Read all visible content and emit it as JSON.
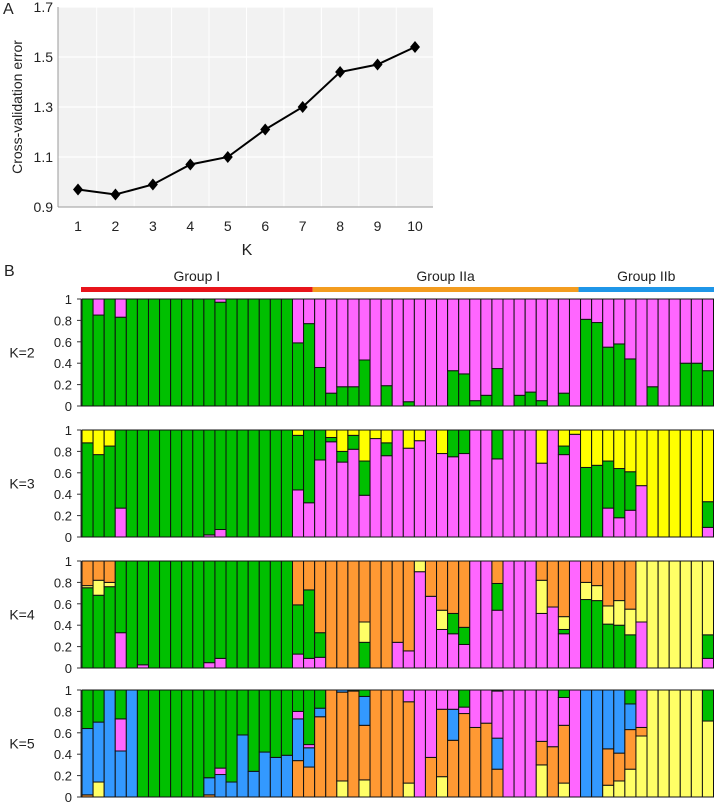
{
  "panel_labels": {
    "a": "A",
    "b": "B"
  },
  "chart_data": [
    {
      "type": "line",
      "xlabel": "K",
      "ylabel": "Cross-validation error",
      "x": [
        1,
        2,
        3,
        4,
        5,
        6,
        7,
        8,
        9,
        10
      ],
      "y": [
        0.97,
        0.95,
        0.99,
        1.07,
        1.1,
        1.21,
        1.3,
        1.44,
        1.47,
        1.54
      ],
      "ylim": [
        0.9,
        1.7
      ],
      "yticks": [
        "0.9",
        "1.1",
        "1.3",
        "1.5",
        "1.7"
      ],
      "xticks": [
        "1",
        "2",
        "3",
        "4",
        "5",
        "6",
        "7",
        "8",
        "9",
        "10"
      ],
      "marker": "diamond",
      "line_color": "#000000",
      "background": "#f2f2f2",
      "grid": true
    },
    {
      "type": "bar",
      "stacked": true,
      "description_of_axes": "",
      "yticks": [
        "1",
        "0.8",
        "0.6",
        "0.4",
        "0.2",
        "0"
      ],
      "ylim": [
        0,
        1
      ],
      "groups": [
        {
          "label": "Group I",
          "bars": [
            1,
            21
          ],
          "color": "#e8141b"
        },
        {
          "label": "Group IIa",
          "bars": [
            22,
            45
          ],
          "color": "#f39c1f"
        },
        {
          "label": "Group IIb",
          "bars": [
            46,
            57
          ],
          "color": "#1f96e8"
        }
      ],
      "colors": {
        "green": "#00bf00",
        "pink": "#ff66ff",
        "yellow": "#ffff00",
        "lightyellow": "#ffff66",
        "orange": "#ff9933",
        "blue": "#3399ff"
      },
      "panels": [
        {
          "label": "K=2",
          "series": [
            {
              "color": "green",
              "values": [
                1,
                0.85,
                1,
                0.83,
                1,
                1,
                1,
                1,
                1,
                1,
                1,
                1,
                0.97,
                1,
                1,
                1,
                1,
                1,
                1,
                0.59,
                0.77,
                0.36,
                0.12,
                0.18,
                0.18,
                0.43,
                0,
                0.19,
                0,
                0.04,
                0,
                0,
                0,
                0.33,
                0.3,
                0.05,
                0.1,
                0.35,
                0,
                0.1,
                0.13,
                0.05,
                0,
                0.12,
                0,
                0.81,
                0.78,
                0.55,
                0.58,
                0.44,
                0,
                0.18,
                0,
                0,
                0.4,
                0.4,
                0.33
              ]
            },
            {
              "color": "pink",
              "values": [
                0,
                0.15,
                0,
                0.17,
                0,
                0,
                0,
                0,
                0,
                0,
                0,
                0,
                0.03,
                0,
                0,
                0,
                0,
                0,
                0,
                0.41,
                0.23,
                0.64,
                0.88,
                0.82,
                0.82,
                0.57,
                1,
                0.81,
                1,
                0.96,
                1,
                1,
                1,
                0.67,
                0.7,
                0.95,
                0.9,
                0.65,
                1,
                0.9,
                0.87,
                0.95,
                1,
                0.88,
                1,
                0.19,
                0.22,
                0.45,
                0.42,
                0.56,
                1,
                0.82,
                1,
                1,
                0.6,
                0.6,
                0.67
              ]
            }
          ]
        },
        {
          "label": "K=3",
          "series": [
            {
              "color": "pink",
              "values": [
                0,
                0,
                0,
                0.27,
                0,
                0,
                0,
                0,
                0,
                0,
                0,
                0.02,
                0.07,
                0,
                0,
                0,
                0,
                0,
                0,
                0.44,
                0.32,
                0.72,
                0.89,
                0.7,
                0.82,
                0.39,
                0.92,
                0.76,
                1,
                0.83,
                0.9,
                1,
                0.78,
                0.75,
                0.78,
                1,
                1,
                0.73,
                1,
                1,
                1,
                0.69,
                1,
                0.77,
                0.96,
                0,
                0,
                0.27,
                0.18,
                0.25,
                0.48,
                0,
                0,
                0,
                0,
                0,
                0.09
              ]
            },
            {
              "color": "green",
              "values": [
                0.88,
                0.77,
                0.85,
                0.73,
                1,
                1,
                1,
                1,
                1,
                1,
                1,
                0.98,
                0.93,
                1,
                1,
                1,
                1,
                1,
                1,
                0.51,
                0.68,
                0.28,
                0.04,
                0.1,
                0.13,
                0.32,
                0,
                0.12,
                0,
                0,
                0,
                0,
                0,
                0.25,
                0.22,
                0,
                0,
                0.27,
                0,
                0,
                0,
                0,
                0,
                0.08,
                0,
                0.65,
                0.67,
                0.44,
                0.46,
                0.36,
                0,
                0,
                0,
                0,
                0,
                0,
                0.24
              ]
            },
            {
              "color": "yellow",
              "values": [
                0.12,
                0.23,
                0.15,
                0,
                0,
                0,
                0,
                0,
                0,
                0,
                0,
                0,
                0,
                0,
                0,
                0,
                0,
                0,
                0,
                0.05,
                0,
                0,
                0.07,
                0.2,
                0.05,
                0.29,
                0.08,
                0.12,
                0,
                0.17,
                0.1,
                0,
                0.22,
                0,
                0,
                0,
                0,
                0,
                0,
                0,
                0,
                0.31,
                0,
                0.15,
                0.04,
                0.35,
                0.33,
                0.29,
                0.36,
                0.39,
                0.52,
                1,
                1,
                1,
                1,
                1,
                0.67
              ]
            }
          ]
        },
        {
          "label": "K=4",
          "series": [
            {
              "color": "pink",
              "values": [
                0,
                0,
                0,
                0.33,
                0,
                0.03,
                0,
                0,
                0,
                0,
                0,
                0.05,
                0.09,
                0,
                0,
                0,
                0,
                0,
                0,
                0.13,
                0.09,
                0.1,
                0,
                0,
                0,
                0,
                0,
                0,
                0.24,
                0.16,
                0.9,
                0.67,
                0.36,
                0.32,
                0.22,
                1,
                1,
                0.54,
                1,
                1,
                1,
                0.51,
                0.57,
                0.32,
                1,
                0,
                0,
                0,
                0,
                0,
                0.43,
                0,
                0,
                0,
                0,
                0,
                0.09
              ]
            },
            {
              "color": "green",
              "values": [
                0.75,
                0.68,
                0.76,
                0.67,
                1,
                0.97,
                1,
                1,
                1,
                1,
                1,
                0.95,
                0.91,
                1,
                1,
                1,
                1,
                1,
                1,
                0.46,
                0.64,
                0.23,
                0,
                0,
                0,
                0.24,
                0,
                0,
                0,
                0,
                0,
                0,
                0,
                0.19,
                0.16,
                0,
                0,
                0.25,
                0,
                0,
                0,
                0,
                0,
                0.04,
                0,
                0.64,
                0.63,
                0.41,
                0.4,
                0.31,
                0,
                0,
                0,
                0,
                0,
                0,
                0.22
              ]
            },
            {
              "color": "lightyellow",
              "values": [
                0.02,
                0.14,
                0.04,
                0,
                0,
                0,
                0,
                0,
                0,
                0,
                0,
                0,
                0,
                0,
                0,
                0,
                0,
                0,
                0,
                0,
                0,
                0,
                0,
                0,
                0,
                0.19,
                0,
                0,
                0,
                0,
                0.1,
                0,
                0.18,
                0,
                0,
                0,
                0,
                0,
                0,
                0,
                0,
                0.31,
                0,
                0.12,
                0,
                0.16,
                0.14,
                0.17,
                0.23,
                0.24,
                0.57,
                1,
                1,
                1,
                1,
                1,
                0.69
              ]
            },
            {
              "color": "orange",
              "values": [
                0.23,
                0.18,
                0.2,
                0,
                0,
                0,
                0,
                0,
                0,
                0,
                0,
                0,
                0,
                0,
                0,
                0,
                0,
                0,
                0,
                0.41,
                0.27,
                0.67,
                1,
                1,
                1,
                0.57,
                1,
                1,
                0.76,
                0.84,
                0,
                0.33,
                0.46,
                0.49,
                0.62,
                0,
                0,
                0.21,
                0,
                0,
                0,
                0.18,
                0.43,
                0.52,
                0,
                0.2,
                0.23,
                0.42,
                0.37,
                0.45,
                0,
                0,
                0,
                0,
                0,
                0,
                0
              ]
            }
          ]
        },
        {
          "label": "K=5",
          "series": [
            {
              "color": "lightyellow",
              "values": [
                0,
                0.14,
                0,
                0,
                0,
                0,
                0,
                0,
                0,
                0,
                0,
                0,
                0,
                0,
                0,
                0,
                0,
                0,
                0,
                0,
                0,
                0,
                0,
                0.15,
                0,
                0.16,
                0,
                0,
                0,
                0.13,
                0,
                0,
                0.19,
                0,
                0,
                0,
                0,
                0,
                0,
                0,
                0,
                0.3,
                0,
                0.13,
                0,
                0,
                0,
                0.11,
                0.15,
                0.26,
                0.57,
                1,
                1,
                1,
                1,
                1,
                0.71
              ]
            },
            {
              "color": "orange",
              "values": [
                0.02,
                0,
                0,
                0,
                0,
                0,
                0,
                0,
                0,
                0,
                0,
                0.02,
                0,
                0,
                0,
                0,
                0,
                0,
                0,
                0.34,
                0.28,
                0.75,
                1,
                0.83,
                0.99,
                0.51,
                1,
                1,
                1,
                0.76,
                0,
                0.37,
                0.63,
                0.53,
                0.78,
                0.65,
                0.69,
                0.26,
                0,
                0,
                0,
                0.22,
                0.47,
                0.54,
                0,
                0,
                0,
                0.34,
                0.26,
                0.37,
                0.08,
                0,
                0,
                0,
                0,
                0,
                0
              ]
            },
            {
              "color": "blue",
              "values": [
                0.62,
                0.56,
                1,
                0.43,
                1,
                0,
                0,
                0,
                0,
                0,
                0,
                0.16,
                0.21,
                0.14,
                0.58,
                0.24,
                0.42,
                0.37,
                0.39,
                0.39,
                0.18,
                0.08,
                0,
                0.02,
                0,
                0.27,
                0,
                0,
                0,
                0,
                0,
                0,
                0,
                0.29,
                0,
                0,
                0,
                0.29,
                0,
                0,
                0,
                0,
                0,
                0,
                0,
                1,
                1,
                0.55,
                0.59,
                0.24,
                0,
                0,
                0,
                0,
                0,
                0,
                0
              ]
            },
            {
              "color": "pink",
              "values": [
                0,
                0,
                0,
                0.3,
                0,
                0,
                0,
                0,
                0,
                0,
                0,
                0,
                0.06,
                0,
                0,
                0,
                0,
                0,
                0,
                0.07,
                0.03,
                0,
                0,
                0,
                0,
                0,
                0,
                0,
                0,
                0.11,
                1,
                0.63,
                0.18,
                0.18,
                0.06,
                0.35,
                0.31,
                0.44,
                1,
                1,
                1,
                0.48,
                0.53,
                0.26,
                1,
                0,
                0,
                0,
                0,
                0,
                0.35,
                0,
                0,
                0,
                0,
                0,
                0
              ]
            },
            {
              "color": "green",
              "values": [
                0.36,
                0.3,
                0,
                0.27,
                0,
                1,
                1,
                1,
                1,
                1,
                1,
                0.82,
                0.73,
                0.86,
                0.42,
                0.76,
                0.58,
                0.63,
                0.61,
                0.2,
                0.51,
                0.17,
                0,
                0,
                0.01,
                0.06,
                0,
                0,
                0,
                0,
                0,
                0,
                0,
                0,
                0.16,
                0,
                0,
                0.01,
                0,
                0,
                0,
                0,
                0,
                0.07,
                0,
                0,
                0,
                0,
                0,
                0.13,
                0,
                0,
                0,
                0,
                0,
                0,
                0.29
              ]
            }
          ]
        }
      ]
    }
  ]
}
